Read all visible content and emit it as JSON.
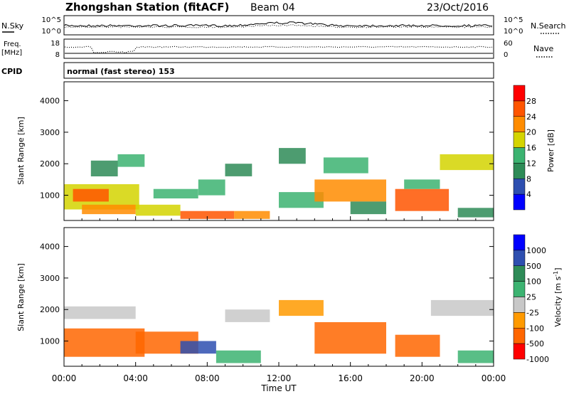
{
  "header": {
    "station_title": "Zhongshan Station (fitACF)",
    "beam": "Beam 04",
    "date": "23/Oct/2016"
  },
  "noise_panel": {
    "left_label": "N.Sky",
    "left_ticks": [
      "10^5",
      "10^0"
    ],
    "right_label": "N.Search",
    "right_ticks": [
      "10^5",
      "10^0"
    ]
  },
  "freq_panel": {
    "left_label_line1": "Freq.",
    "left_label_line2": "[MHz]",
    "left_ticks": [
      "18",
      "8"
    ],
    "right_label": "Nave",
    "right_ticks": [
      "60",
      "0"
    ]
  },
  "cpid": {
    "label": "CPID",
    "value": "normal (fast stereo) 153"
  },
  "colors": {
    "power": [
      "#0000ff",
      "#2e4fb0",
      "#2e8b57",
      "#3cb371",
      "#d4d400",
      "#ff8c00",
      "#ff5500",
      "#ff0000"
    ],
    "velocity": [
      "#ff0000",
      "#ff6600",
      "#ff9a00",
      "#c8c8c8",
      "#3cb371",
      "#2e8b57",
      "#2e4fb0",
      "#0000ff"
    ]
  },
  "chart_data": [
    {
      "type": "heatmap",
      "quantity": "Power",
      "ylabel": "Slant Range [km]",
      "yticks": [
        1000,
        2000,
        3000,
        4000
      ],
      "ylim": [
        200,
        4600
      ],
      "xlim_hours": [
        0,
        24
      ],
      "colorbar": {
        "label": "Power [dB]",
        "ticks": [
          "4",
          "8",
          "12",
          "16",
          "20",
          "24",
          "28"
        ],
        "range": [
          0,
          32
        ]
      },
      "regions": [
        {
          "t": [
            0.0,
            4.2
          ],
          "r": [
            550,
            1350
          ],
          "level": 16
        },
        {
          "t": [
            0.5,
            2.5
          ],
          "r": [
            800,
            1200
          ],
          "level": 24
        },
        {
          "t": [
            1.0,
            4.0
          ],
          "r": [
            400,
            700
          ],
          "level": 20
        },
        {
          "t": [
            1.5,
            3.0
          ],
          "r": [
            1600,
            2100
          ],
          "level": 10
        },
        {
          "t": [
            3.0,
            4.5
          ],
          "r": [
            1900,
            2300
          ],
          "level": 14
        },
        {
          "t": [
            4.0,
            6.5
          ],
          "r": [
            350,
            700
          ],
          "level": 16
        },
        {
          "t": [
            5.0,
            7.5
          ],
          "r": [
            900,
            1200
          ],
          "level": 12
        },
        {
          "t": [
            6.5,
            9.5
          ],
          "r": [
            250,
            500
          ],
          "level": 24
        },
        {
          "t": [
            7.5,
            9.0
          ],
          "r": [
            1000,
            1500
          ],
          "level": 12
        },
        {
          "t": [
            9.5,
            11.5
          ],
          "r": [
            250,
            500
          ],
          "level": 22
        },
        {
          "t": [
            9.0,
            10.5
          ],
          "r": [
            1600,
            2000
          ],
          "level": 10
        },
        {
          "t": [
            12.0,
            14.5
          ],
          "r": [
            600,
            1100
          ],
          "level": 14
        },
        {
          "t": [
            12.0,
            13.5
          ],
          "r": [
            2000,
            2500
          ],
          "level": 10
        },
        {
          "t": [
            14.0,
            18.0
          ],
          "r": [
            800,
            1500
          ],
          "level": 22
        },
        {
          "t": [
            14.5,
            17.0
          ],
          "r": [
            1700,
            2200
          ],
          "level": 12
        },
        {
          "t": [
            16.0,
            18.0
          ],
          "r": [
            400,
            800
          ],
          "level": 8
        },
        {
          "t": [
            18.5,
            21.5
          ],
          "r": [
            500,
            1200
          ],
          "level": 24
        },
        {
          "t": [
            19.0,
            21.0
          ],
          "r": [
            1200,
            1500
          ],
          "level": 14
        },
        {
          "t": [
            21.0,
            24.0
          ],
          "r": [
            1800,
            2300
          ],
          "level": 18
        },
        {
          "t": [
            22.0,
            24.0
          ],
          "r": [
            300,
            600
          ],
          "level": 10
        }
      ]
    },
    {
      "type": "heatmap",
      "quantity": "Velocity",
      "ylabel": "Slant Range [km]",
      "yticks": [
        1000,
        2000,
        3000,
        4000
      ],
      "ylim": [
        200,
        4600
      ],
      "xlim_hours": [
        0,
        24
      ],
      "xticks": [
        "00:00",
        "04:00",
        "08:00",
        "12:00",
        "16:00",
        "20:00",
        "00:00"
      ],
      "xlabel": "Time UT",
      "colorbar": {
        "label": "Velocity [m s^-1]",
        "ticks": [
          "1000",
          "500",
          "100",
          "25",
          "-25",
          "-100",
          "-500",
          "-1000"
        ]
      },
      "regions": [
        {
          "t": [
            0.0,
            4.0
          ],
          "r": [
            1700,
            2100
          ],
          "v": 0
        },
        {
          "t": [
            0.0,
            4.5
          ],
          "r": [
            500,
            1400
          ],
          "v": -200
        },
        {
          "t": [
            4.0,
            7.5
          ],
          "r": [
            600,
            1300
          ],
          "v": -150
        },
        {
          "t": [
            6.5,
            8.5
          ],
          "r": [
            600,
            1000
          ],
          "v": 800
        },
        {
          "t": [
            8.5,
            11.0
          ],
          "r": [
            300,
            700
          ],
          "v": 80
        },
        {
          "t": [
            9.0,
            11.5
          ],
          "r": [
            1600,
            2000
          ],
          "v": 0
        },
        {
          "t": [
            12.0,
            14.5
          ],
          "r": [
            1800,
            2300
          ],
          "v": -80
        },
        {
          "t": [
            14.0,
            18.0
          ],
          "r": [
            600,
            1600
          ],
          "v": -250
        },
        {
          "t": [
            18.5,
            21.0
          ],
          "r": [
            500,
            1200
          ],
          "v": -200
        },
        {
          "t": [
            20.5,
            24.0
          ],
          "r": [
            1800,
            2300
          ],
          "v": 0
        },
        {
          "t": [
            22.0,
            24.0
          ],
          "r": [
            300,
            700
          ],
          "v": 80
        }
      ]
    }
  ]
}
